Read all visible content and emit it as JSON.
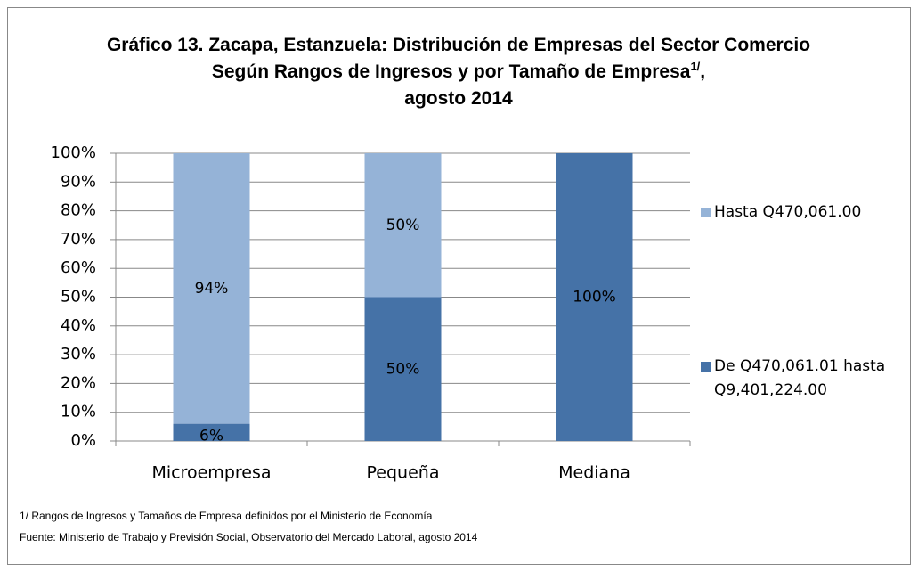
{
  "chart_data": {
    "type": "stacked_bar",
    "title": "Gráfico 13. Zacapa, Estanzuela: Distribución de Empresas del Sector Comercio Según Rangos de Ingresos y por Tamaño de Empresa",
    "title_note": "1/",
    "title_tail": ",",
    "title_date": "agosto 2014",
    "categories": [
      "Microempresa",
      "Pequeña",
      "Mediana"
    ],
    "series": [
      {
        "name": "De Q470,061.01 hasta Q9,401,224.00",
        "color": "#4572a7",
        "values": [
          6,
          50,
          100
        ],
        "value_labels": [
          "6%",
          "50%",
          "100%"
        ]
      },
      {
        "name": "Hasta Q470,061.00",
        "color": "#95b3d7",
        "values": [
          94,
          50,
          0
        ],
        "value_labels": [
          "94%",
          "50%",
          null
        ]
      }
    ],
    "ylim": [
      0,
      100
    ],
    "yticks": [
      {
        "value": 0,
        "label": "0%"
      },
      {
        "value": 10,
        "label": "10%"
      },
      {
        "value": 20,
        "label": "20%"
      },
      {
        "value": 30,
        "label": "30%"
      },
      {
        "value": 40,
        "label": "40%"
      },
      {
        "value": 50,
        "label": "50%"
      },
      {
        "value": 60,
        "label": "60%"
      },
      {
        "value": 70,
        "label": "70%"
      },
      {
        "value": 80,
        "label": "80%"
      },
      {
        "value": 90,
        "label": "90%"
      },
      {
        "value": 100,
        "label": "100%"
      }
    ],
    "grid": true,
    "legend": "right",
    "footnotes": [
      "1/ Rangos de Ingresos y Tamaños de Empresa definidos por el Ministerio de Economía",
      "Fuente: Ministerio de Trabajo y Previsión Social, Observatorio del Mercado Laboral, agosto 2014"
    ]
  }
}
